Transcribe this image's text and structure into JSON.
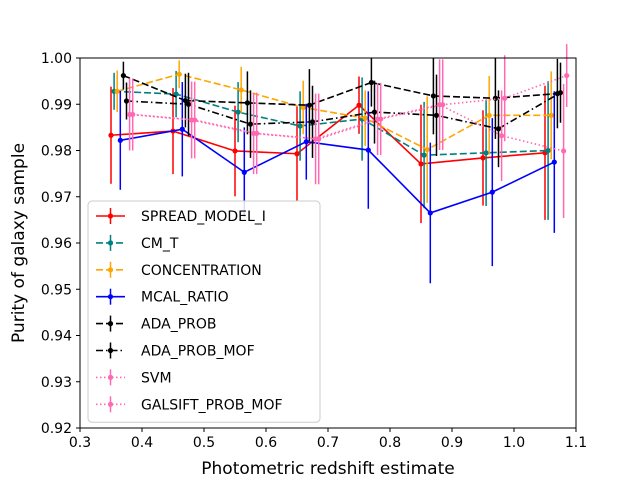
{
  "chart_data": {
    "type": "line",
    "title": "",
    "xlabel": "Photometric redshift estimate",
    "ylabel": "Purity of galaxy sample",
    "xlim": [
      0.3,
      1.1
    ],
    "ylim": [
      0.92,
      1.0
    ],
    "xticks": [
      0.3,
      0.4,
      0.5,
      0.6,
      0.7,
      0.8,
      0.9,
      1.0,
      1.1
    ],
    "xtick_labels": [
      "0.3",
      "0.4",
      "0.5",
      "0.6",
      "0.7",
      "0.8",
      "0.9",
      "1.0",
      "1.1"
    ],
    "yticks": [
      0.92,
      0.93,
      0.94,
      0.95,
      0.96,
      0.97,
      0.98,
      0.99,
      1.0
    ],
    "ytick_labels": [
      "0.92",
      "0.93",
      "0.94",
      "0.95",
      "0.96",
      "0.97",
      "0.98",
      "0.99",
      "1.00"
    ],
    "legend_position": "lower-left",
    "series": [
      {
        "name": "SPREAD_MODEL_I",
        "color": "#ff0000",
        "dash": "solid",
        "x": [
          0.35,
          0.45,
          0.55,
          0.65,
          0.75,
          0.85,
          0.95,
          1.05
        ],
        "y": [
          0.9833,
          0.9842,
          0.9799,
          0.9793,
          0.9898,
          0.9771,
          0.9784,
          0.9795
        ],
        "err": [
          0.0105,
          0.0093,
          0.0098,
          0.0102,
          0.0062,
          0.0128,
          0.0103,
          0.0145
        ]
      },
      {
        "name": "CM_T",
        "color": "#008080",
        "dash": "dashed",
        "x": [
          0.355,
          0.455,
          0.555,
          0.655,
          0.755,
          0.855,
          0.955,
          1.055
        ],
        "y": [
          0.9928,
          0.9922,
          0.9883,
          0.9853,
          0.9868,
          0.979,
          0.9795,
          0.98
        ],
        "err": [
          0.004,
          0.005,
          0.0065,
          0.0075,
          0.009,
          0.0115,
          0.0115,
          0.015
        ]
      },
      {
        "name": "CONCENTRATION",
        "color": "#ffa500",
        "dash": "dashed",
        "x": [
          0.36,
          0.46,
          0.56,
          0.66,
          0.76,
          0.86,
          0.96,
          1.06
        ],
        "y": [
          0.9928,
          0.9965,
          0.9931,
          0.9893,
          0.987,
          0.9802,
          0.9876,
          0.9876
        ],
        "err": [
          0.0045,
          0.003,
          0.005,
          0.0058,
          0.006,
          0.0115,
          0.0085,
          0.0095
        ]
      },
      {
        "name": "MCAL_RATIO",
        "color": "#0000ff",
        "dash": "solid",
        "x": [
          0.365,
          0.465,
          0.565,
          0.665,
          0.765,
          0.865,
          0.965,
          1.065
        ],
        "y": [
          0.9822,
          0.9846,
          0.9753,
          0.9819,
          0.9801,
          0.9665,
          0.971,
          0.9775
        ],
        "err": [
          0.0107,
          0.0102,
          0.0097,
          0.0082,
          0.0127,
          0.0152,
          0.016,
          0.0153
        ]
      },
      {
        "name": "ADA_PROB",
        "color": "#000000",
        "dash": "dashed",
        "x": [
          0.37,
          0.47,
          0.57,
          0.67,
          0.77,
          0.87,
          0.97,
          1.07
        ],
        "y": [
          0.9962,
          0.9908,
          0.9903,
          0.9898,
          0.9947,
          0.9918,
          0.9913,
          0.9923
        ],
        "err": [
          0.003,
          0.0058,
          0.0068,
          0.0078,
          0.0052,
          0.0083,
          0.0088,
          0.0075
        ]
      },
      {
        "name": "ADA_PROB_MOF",
        "color": "#000000",
        "dash": "dashdot",
        "x": [
          0.375,
          0.475,
          0.575,
          0.675,
          0.775,
          0.875,
          0.975,
          1.075
        ],
        "y": [
          0.9907,
          0.99,
          0.9857,
          0.9862,
          0.9883,
          0.9876,
          0.9847,
          0.9925
        ],
        "err": [
          0.004,
          0.0068,
          0.0073,
          0.0078,
          0.0068,
          0.0088,
          0.0083,
          0.0065
        ]
      },
      {
        "name": "SVM",
        "color": "#ff69b4",
        "dash": "dotted",
        "x": [
          0.38,
          0.48,
          0.58,
          0.68,
          0.78,
          0.88,
          0.98,
          1.08
        ],
        "y": [
          0.9878,
          0.9866,
          0.9837,
          0.9825,
          0.9868,
          0.9899,
          0.9832,
          0.9799
        ],
        "err": [
          0.0078,
          0.0083,
          0.0088,
          0.0098,
          0.0078,
          0.0098,
          0.0098,
          0.0145
        ]
      },
      {
        "name": "GALSIFT_PROB_MOF",
        "color": "#ff69b4",
        "dash": "dotted",
        "x": [
          0.385,
          0.485,
          0.585,
          0.685,
          0.785,
          0.885,
          0.985,
          1.085
        ],
        "y": [
          0.9878,
          0.9866,
          0.9837,
          0.9825,
          0.9868,
          0.9899,
          0.9913,
          0.9962
        ],
        "err": [
          0.0078,
          0.0083,
          0.0088,
          0.0098,
          0.0078,
          0.0098,
          0.0093,
          0.0068
        ]
      }
    ]
  }
}
